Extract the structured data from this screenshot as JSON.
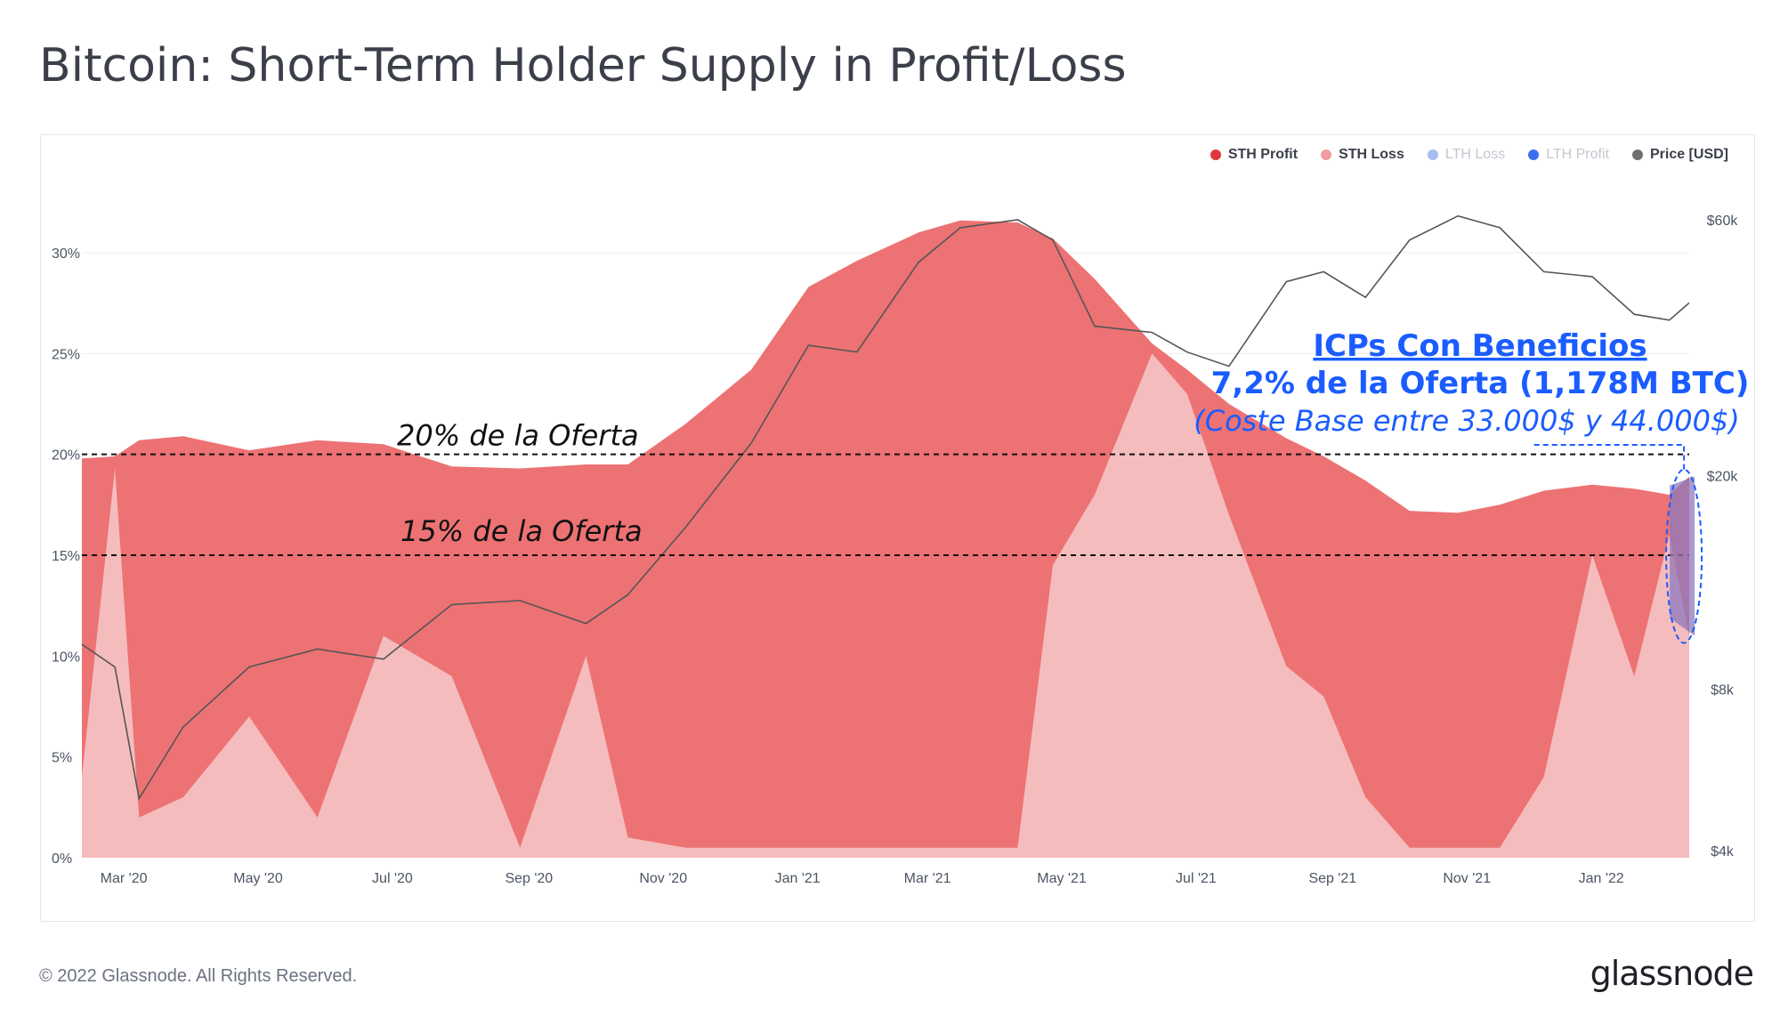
{
  "header": {
    "title": "Bitcoin: Short-Term Holder Supply in Profit/Loss"
  },
  "footer": {
    "copyright": "© 2022 Glassnode. All Rights Reserved.",
    "logo": "glassnode"
  },
  "watermark": "glassnode",
  "legend": [
    {
      "label": "STH Profit",
      "color": "#e0373f",
      "active": true
    },
    {
      "label": "STH Loss",
      "color": "#f29ba0",
      "active": true
    },
    {
      "label": "LTH Loss",
      "color": "#a8bdf4",
      "active": false
    },
    {
      "label": "LTH Profit",
      "color": "#3e6ef0",
      "active": false
    },
    {
      "label": "Price [USD]",
      "color": "#707070",
      "active": true
    }
  ],
  "annotations": {
    "line20_label": "20% de la Oferta",
    "line15_label": "15% de la Oferta",
    "callout_title": "ICPs Con Beneficios",
    "callout_line2": "7,2% de la Oferta (1,178M BTC)",
    "callout_line3": "(Coste Base entre 33.000$ y 44.000$)"
  },
  "colors": {
    "profit": "#ed7274",
    "loss": "#f5bcbd",
    "price": "#555555",
    "annotation_blue": "#1a5cff",
    "highlight": "#8c79bd"
  },
  "chart_data": {
    "type": "area",
    "title": "Bitcoin: Short-Term Holder Supply in Profit/Loss",
    "x_ticks": [
      "Mar '20",
      "May '20",
      "Jul '20",
      "Sep '20",
      "Nov '20",
      "Jan '21",
      "Mar '21",
      "May '21",
      "Jul '21",
      "Sep '21",
      "Nov '21",
      "Jan '22"
    ],
    "y_left_ticks": [
      "0%",
      "5%",
      "10%",
      "15%",
      "20%",
      "25%",
      "30%"
    ],
    "y_left_range": [
      0,
      33
    ],
    "y_right_ticks": [
      "$4k",
      "$8k",
      "$20k",
      "$60k"
    ],
    "y_right_scale": "log",
    "reference_lines": [
      20,
      15
    ],
    "x": [
      "2020-02-15",
      "2020-03-01",
      "2020-03-12",
      "2020-04-01",
      "2020-05-01",
      "2020-06-01",
      "2020-07-01",
      "2020-08-01",
      "2020-09-01",
      "2020-10-01",
      "2020-10-20",
      "2020-11-15",
      "2020-12-15",
      "2021-01-10",
      "2021-02-01",
      "2021-03-01",
      "2021-03-20",
      "2021-04-15",
      "2021-05-01",
      "2021-05-20",
      "2021-06-15",
      "2021-07-01",
      "2021-07-20",
      "2021-08-15",
      "2021-09-01",
      "2021-09-20",
      "2021-10-10",
      "2021-11-01",
      "2021-11-20",
      "2021-12-10",
      "2022-01-01",
      "2022-01-20",
      "2022-02-05",
      "2022-02-14"
    ],
    "series": [
      {
        "name": "STH Supply (Profit + Loss)",
        "values": [
          19.8,
          19.9,
          20.7,
          20.9,
          20.2,
          20.7,
          20.5,
          19.4,
          19.3,
          19.5,
          19.5,
          21.5,
          24.2,
          28.3,
          29.6,
          31.0,
          31.6,
          31.5,
          30.7,
          28.7,
          25.5,
          24.2,
          22.5,
          20.8,
          19.9,
          18.7,
          17.2,
          17.1,
          17.5,
          18.2,
          18.5,
          18.3,
          18.0,
          18.9
        ]
      },
      {
        "name": "STH Loss",
        "values": [
          4.0,
          19.3,
          2.0,
          3.0,
          7.0,
          2.0,
          11.0,
          9.0,
          0.5,
          10.0,
          1.0,
          0.5,
          0.5,
          0.5,
          0.5,
          0.5,
          0.5,
          0.5,
          14.5,
          18.0,
          25.0,
          23.0,
          17.0,
          9.5,
          8.0,
          3.0,
          0.5,
          0.5,
          0.5,
          4.0,
          15.0,
          9.0,
          16.0,
          11.0
        ]
      },
      {
        "name": "Price [USD]",
        "values": [
          9700,
          8800,
          5000,
          6800,
          8800,
          9500,
          9100,
          11500,
          11700,
          10600,
          12000,
          16000,
          23000,
          35000,
          34000,
          50000,
          58000,
          60000,
          55000,
          38000,
          37000,
          34000,
          32000,
          46000,
          48000,
          43000,
          55000,
          61000,
          58000,
          48000,
          47000,
          40000,
          39000,
          42000
        ]
      }
    ],
    "highlight": {
      "x": "2022-02-10",
      "y_range": [
        11.0,
        18.9
      ],
      "value": 7.2
    }
  }
}
